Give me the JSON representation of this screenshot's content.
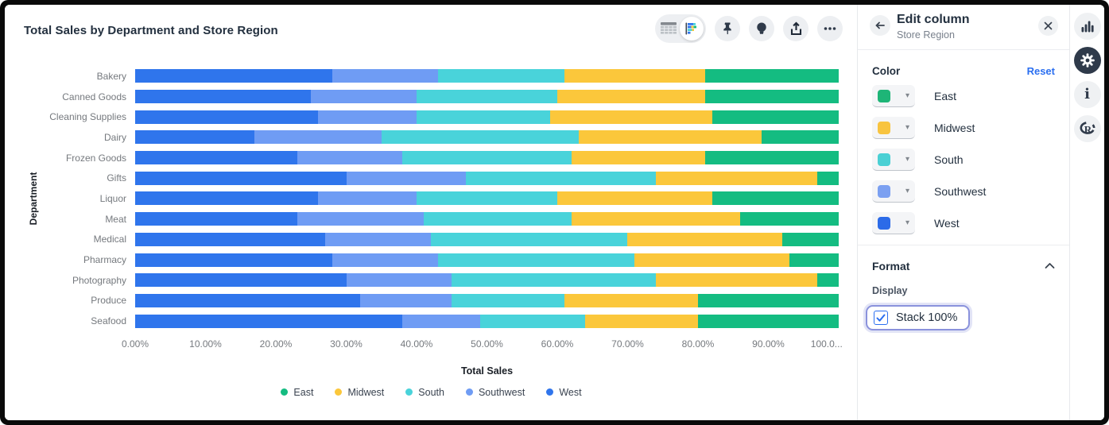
{
  "accent_blue": "#2b6ff0",
  "focus_ring_color": "#8a92dc",
  "card": {
    "title": "Total Sales by Department and Store Region"
  },
  "viz_toolbar": {
    "view_toggle": {
      "table_icon": "table-view-icon",
      "chart_icon": "bar-chart-view-icon",
      "active": "chart"
    },
    "buttons": [
      "pin-icon",
      "lightbulb-icon",
      "share-icon",
      "ellipsis-icon"
    ]
  },
  "chart_data": {
    "type": "bar",
    "orientation": "horizontal",
    "stack_100": true,
    "title": "Total Sales by Department and Store Region",
    "xlabel": "Total Sales",
    "ylabel": "Department",
    "xlim": [
      0,
      100
    ],
    "x_ticks": [
      "0.00%",
      "10.00%",
      "20.00%",
      "30.00%",
      "40.00%",
      "50.00%",
      "60.00%",
      "70.00%",
      "80.00%",
      "90.00%",
      "100.0..."
    ],
    "legend_position": "bottom",
    "categories": [
      "Bakery",
      "Canned Goods",
      "Cleaning Supplies",
      "Dairy",
      "Frozen Goods",
      "Gifts",
      "Liquor",
      "Meat",
      "Medical",
      "Pharmacy",
      "Photography",
      "Produce",
      "Seafood"
    ],
    "stack_order": [
      "West",
      "Southwest",
      "South",
      "Midwest",
      "East"
    ],
    "series": [
      {
        "name": "East",
        "color": "#14bc81",
        "values": [
          19,
          19,
          18,
          11,
          19,
          3,
          18,
          14,
          8,
          7,
          3,
          20,
          20
        ]
      },
      {
        "name": "Midwest",
        "color": "#fbc73b",
        "values": [
          20,
          21,
          23,
          26,
          19,
          23,
          22,
          24,
          22,
          22,
          23,
          19,
          16
        ]
      },
      {
        "name": "South",
        "color": "#49d3da",
        "values": [
          18,
          20,
          19,
          28,
          24,
          27,
          20,
          21,
          28,
          28,
          29,
          16,
          15
        ]
      },
      {
        "name": "Southwest",
        "color": "#6f9cf4",
        "values": [
          15,
          15,
          14,
          18,
          15,
          17,
          14,
          18,
          15,
          15,
          15,
          13,
          11
        ]
      },
      {
        "name": "West",
        "color": "#2f75ec",
        "values": [
          28,
          25,
          26,
          17,
          23,
          30,
          26,
          23,
          27,
          28,
          30,
          32,
          38
        ]
      }
    ]
  },
  "panel": {
    "title": "Edit column",
    "subtitle": "Store Region",
    "color_section": {
      "label": "Color",
      "reset_label": "Reset",
      "items": [
        {
          "name": "East",
          "color": "#1eb577"
        },
        {
          "name": "Midwest",
          "color": "#f8c440"
        },
        {
          "name": "South",
          "color": "#4ad0d4"
        },
        {
          "name": "Southwest",
          "color": "#7ba0f1"
        },
        {
          "name": "West",
          "color": "#2c6be8"
        }
      ]
    },
    "format_section": {
      "label": "Format",
      "display_label": "Display",
      "stack_checkbox": {
        "label": "Stack 100%",
        "checked": true
      }
    }
  },
  "right_rail": {
    "items": [
      "chart-icon",
      "settings-gear-icon",
      "info-icon",
      "r-logo-icon"
    ]
  }
}
